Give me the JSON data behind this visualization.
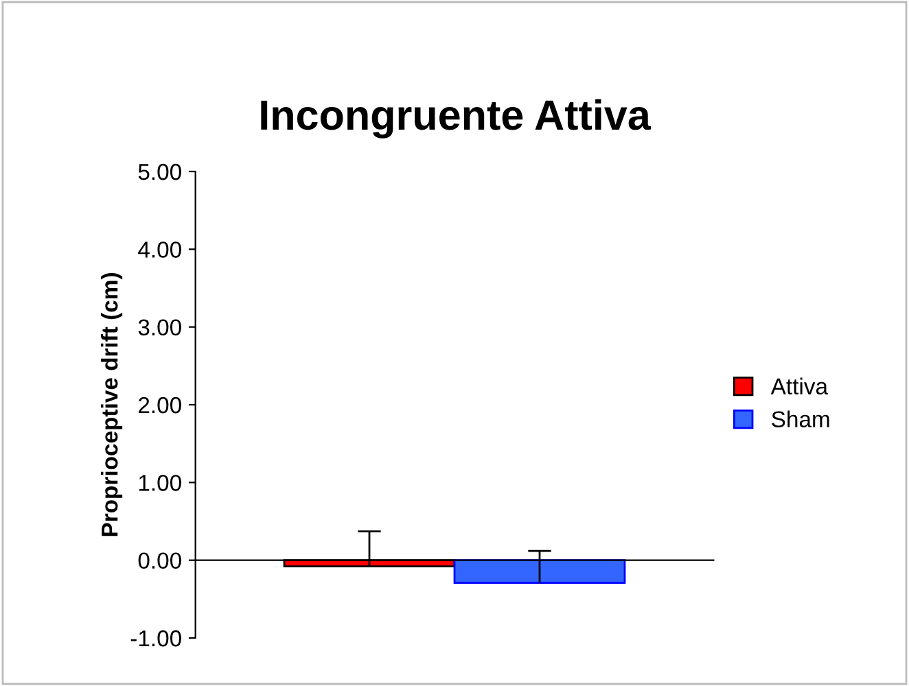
{
  "chart_data": {
    "type": "bar",
    "title": "Incongruente Attiva",
    "ylabel": "Proprioceptive drift (cm)",
    "categories": [
      null
    ],
    "series": [
      {
        "name": "Attiva",
        "color": "#ff0000",
        "values": [
          -0.08
        ],
        "errors": [
          [
            -0.08,
            0.37
          ]
        ]
      },
      {
        "name": "Sham",
        "color": "#3366ff",
        "values": [
          -0.29
        ],
        "errors": [
          [
            -0.29,
            0.12
          ]
        ]
      }
    ],
    "ylim": [
      -1,
      5
    ],
    "yticks": [
      {
        "value": -1,
        "label": "-1.00"
      },
      {
        "value": 0,
        "label": "0.00"
      },
      {
        "value": 1,
        "label": "1.00"
      },
      {
        "value": 2,
        "label": "2.00"
      },
      {
        "value": 3,
        "label": "3.00"
      },
      {
        "value": 4,
        "label": "4.00"
      },
      {
        "value": 5,
        "label": "5.00"
      }
    ],
    "legend": "right"
  }
}
